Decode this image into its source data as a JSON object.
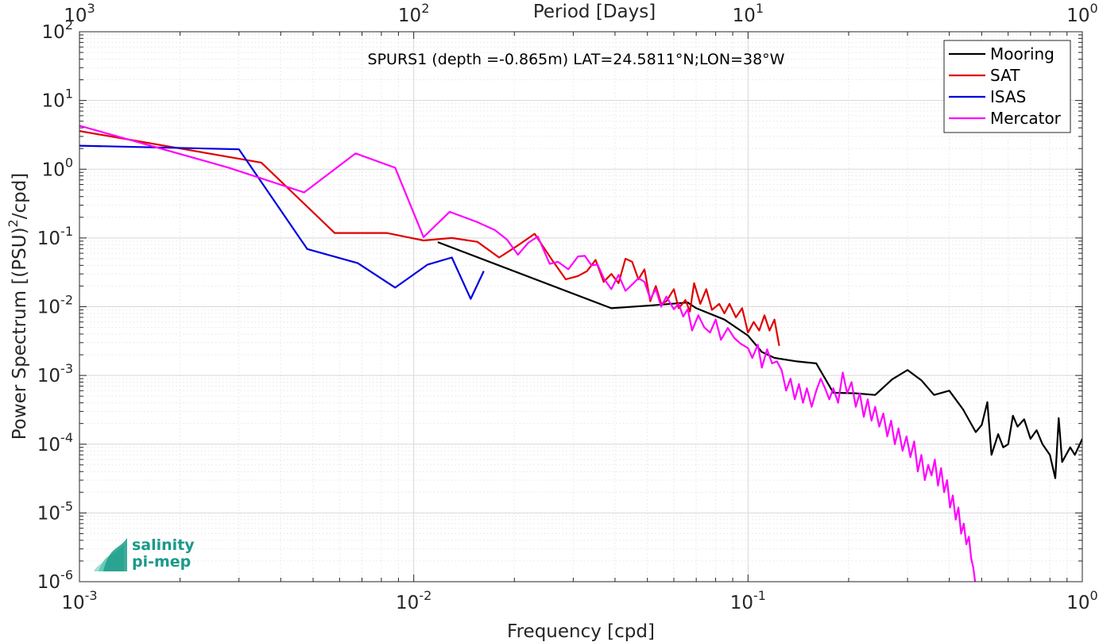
{
  "chart_data": {
    "type": "line",
    "title": "SPURS1 (depth =-0.865m) LAT=24.5811°N;LON=38°W",
    "xlabel": "Frequency [cpd]",
    "ylabel": "Power Spectrum [(PSU)^2/cpd]",
    "ylabel_parts": {
      "before": "Power Spectrum [(PSU)",
      "sup": "2",
      "after": "/cpd]"
    },
    "x2label": "Period [Days]",
    "xscale": "log",
    "yscale": "log",
    "xlim": [
      0.001,
      1
    ],
    "ylim": [
      1e-06,
      100
    ],
    "grid": true,
    "legend_position": "top-right",
    "x_ticks": [
      {
        "value": 0.001,
        "base": "10",
        "exp": "-3"
      },
      {
        "value": 0.01,
        "base": "10",
        "exp": "-2"
      },
      {
        "value": 0.1,
        "base": "10",
        "exp": "-1"
      },
      {
        "value": 1,
        "base": "10",
        "exp": "0"
      }
    ],
    "x2_ticks": [
      {
        "value": 0.001,
        "base": "10",
        "exp": "3"
      },
      {
        "value": 0.01,
        "base": "10",
        "exp": "2"
      },
      {
        "value": 0.1,
        "base": "10",
        "exp": "1"
      },
      {
        "value": 1,
        "base": "10",
        "exp": "0"
      }
    ],
    "y_ticks": [
      {
        "value": 1e-06,
        "base": "10",
        "exp": "-6"
      },
      {
        "value": 1e-05,
        "base": "10",
        "exp": "-5"
      },
      {
        "value": 0.0001,
        "base": "10",
        "exp": "-4"
      },
      {
        "value": 0.001,
        "base": "10",
        "exp": "-3"
      },
      {
        "value": 0.01,
        "base": "10",
        "exp": "-2"
      },
      {
        "value": 0.1,
        "base": "10",
        "exp": "-1"
      },
      {
        "value": 1,
        "base": "10",
        "exp": "0"
      },
      {
        "value": 10,
        "base": "10",
        "exp": "1"
      },
      {
        "value": 100,
        "base": "10",
        "exp": "2"
      }
    ],
    "series": [
      {
        "name": "Mooring",
        "color": "#000000",
        "points": [
          [
            0.0118,
            0.087
          ],
          [
            0.039,
            0.0095
          ],
          [
            0.052,
            0.0105
          ],
          [
            0.066,
            0.0115
          ],
          [
            0.07,
            0.0095
          ],
          [
            0.085,
            0.0065
          ],
          [
            0.1,
            0.0038
          ],
          [
            0.11,
            0.0022
          ],
          [
            0.12,
            0.0018
          ],
          [
            0.14,
            0.0016
          ],
          [
            0.16,
            0.0015
          ],
          [
            0.18,
            0.00056
          ],
          [
            0.21,
            0.00055
          ],
          [
            0.24,
            0.00052
          ],
          [
            0.27,
            0.00088
          ],
          [
            0.3,
            0.0012
          ],
          [
            0.33,
            0.00085
          ],
          [
            0.36,
            0.00052
          ],
          [
            0.4,
            0.0006
          ],
          [
            0.44,
            0.00032
          ],
          [
            0.48,
            0.00015
          ],
          [
            0.5,
            0.00019
          ],
          [
            0.52,
            0.00041
          ],
          [
            0.535,
            7e-05
          ],
          [
            0.56,
            0.00014
          ],
          [
            0.58,
            9e-05
          ],
          [
            0.6,
            0.0001
          ],
          [
            0.62,
            0.00026
          ],
          [
            0.64,
            0.00018
          ],
          [
            0.67,
            0.00023
          ],
          [
            0.7,
            0.00012
          ],
          [
            0.73,
            0.00016
          ],
          [
            0.76,
            0.0001
          ],
          [
            0.8,
            7e-05
          ],
          [
            0.83,
            3.2e-05
          ],
          [
            0.85,
            0.00024
          ],
          [
            0.87,
            5.5e-05
          ],
          [
            0.92,
            9e-05
          ],
          [
            0.95,
            7e-05
          ],
          [
            1.0,
            0.00012
          ]
        ]
      },
      {
        "name": "SAT",
        "color": "#e00000",
        "points": [
          [
            0.001,
            3.6
          ],
          [
            0.0035,
            1.25
          ],
          [
            0.0058,
            0.118
          ],
          [
            0.0083,
            0.118
          ],
          [
            0.0107,
            0.092
          ],
          [
            0.013,
            0.1
          ],
          [
            0.0155,
            0.088
          ],
          [
            0.018,
            0.052
          ],
          [
            0.0205,
            0.078
          ],
          [
            0.023,
            0.115
          ],
          [
            0.026,
            0.047
          ],
          [
            0.0285,
            0.025
          ],
          [
            0.031,
            0.028
          ],
          [
            0.033,
            0.033
          ],
          [
            0.035,
            0.048
          ],
          [
            0.037,
            0.023
          ],
          [
            0.039,
            0.03
          ],
          [
            0.041,
            0.022
          ],
          [
            0.043,
            0.05
          ],
          [
            0.045,
            0.045
          ],
          [
            0.047,
            0.025
          ],
          [
            0.049,
            0.035
          ],
          [
            0.051,
            0.012
          ],
          [
            0.053,
            0.02
          ],
          [
            0.055,
            0.011
          ],
          [
            0.057,
            0.012
          ],
          [
            0.06,
            0.018
          ],
          [
            0.062,
            0.0095
          ],
          [
            0.065,
            0.0125
          ],
          [
            0.067,
            0.0085
          ],
          [
            0.069,
            0.022
          ],
          [
            0.072,
            0.011
          ],
          [
            0.075,
            0.018
          ],
          [
            0.078,
            0.009
          ],
          [
            0.082,
            0.011
          ],
          [
            0.085,
            0.008
          ],
          [
            0.088,
            0.011
          ],
          [
            0.092,
            0.007
          ],
          [
            0.096,
            0.0095
          ],
          [
            0.1,
            0.0042
          ],
          [
            0.104,
            0.006
          ],
          [
            0.108,
            0.0045
          ],
          [
            0.112,
            0.0075
          ],
          [
            0.116,
            0.0045
          ],
          [
            0.12,
            0.0065
          ],
          [
            0.124,
            0.0027
          ]
        ]
      },
      {
        "name": "ISAS",
        "color": "#0000e0",
        "points": [
          [
            0.001,
            2.2
          ],
          [
            0.003,
            1.95
          ],
          [
            0.0048,
            0.069
          ],
          [
            0.0068,
            0.043
          ],
          [
            0.0088,
            0.019
          ],
          [
            0.011,
            0.041
          ],
          [
            0.013,
            0.052
          ],
          [
            0.0148,
            0.013
          ],
          [
            0.0162,
            0.033
          ]
        ]
      },
      {
        "name": "Mercator",
        "color": "#ff00ff",
        "points": [
          [
            0.001,
            4.3
          ],
          [
            0.0028,
            1.05
          ],
          [
            0.0047,
            0.46
          ],
          [
            0.0067,
            1.7
          ],
          [
            0.0088,
            1.05
          ],
          [
            0.0107,
            0.103
          ],
          [
            0.0128,
            0.24
          ],
          [
            0.0155,
            0.17
          ],
          [
            0.0175,
            0.13
          ],
          [
            0.019,
            0.095
          ],
          [
            0.0205,
            0.057
          ],
          [
            0.022,
            0.085
          ],
          [
            0.0235,
            0.105
          ],
          [
            0.0255,
            0.042
          ],
          [
            0.027,
            0.045
          ],
          [
            0.029,
            0.035
          ],
          [
            0.031,
            0.054
          ],
          [
            0.0325,
            0.055
          ],
          [
            0.034,
            0.04
          ],
          [
            0.0355,
            0.041
          ],
          [
            0.037,
            0.026
          ],
          [
            0.039,
            0.018
          ],
          [
            0.041,
            0.029
          ],
          [
            0.043,
            0.017
          ],
          [
            0.045,
            0.021
          ],
          [
            0.047,
            0.026
          ],
          [
            0.049,
            0.023
          ],
          [
            0.051,
            0.013
          ],
          [
            0.053,
            0.018
          ],
          [
            0.055,
            0.01
          ],
          [
            0.057,
            0.014
          ],
          [
            0.06,
            0.0092
          ],
          [
            0.062,
            0.011
          ],
          [
            0.064,
            0.0072
          ],
          [
            0.066,
            0.0092
          ],
          [
            0.068,
            0.0045
          ],
          [
            0.071,
            0.0075
          ],
          [
            0.074,
            0.005
          ],
          [
            0.077,
            0.0042
          ],
          [
            0.08,
            0.0065
          ],
          [
            0.083,
            0.0033
          ],
          [
            0.087,
            0.0049
          ],
          [
            0.091,
            0.0035
          ],
          [
            0.095,
            0.0029
          ],
          [
            0.1,
            0.0025
          ],
          [
            0.103,
            0.0018
          ],
          [
            0.107,
            0.0028
          ],
          [
            0.11,
            0.0013
          ],
          [
            0.114,
            0.0024
          ],
          [
            0.118,
            0.0015
          ],
          [
            0.122,
            0.0016
          ],
          [
            0.126,
            0.0012
          ],
          [
            0.13,
            0.0006
          ],
          [
            0.134,
            0.0009
          ],
          [
            0.138,
            0.00045
          ],
          [
            0.142,
            0.00075
          ],
          [
            0.146,
            0.0004
          ],
          [
            0.15,
            0.00065
          ],
          [
            0.155,
            0.00035
          ],
          [
            0.16,
            0.0006
          ],
          [
            0.165,
            0.0009
          ],
          [
            0.17,
            0.00065
          ],
          [
            0.175,
            0.00045
          ],
          [
            0.18,
            0.00065
          ],
          [
            0.186,
            0.0004
          ],
          [
            0.192,
            0.0011
          ],
          [
            0.198,
            0.00055
          ],
          [
            0.204,
            0.0008
          ],
          [
            0.21,
            0.00035
          ],
          [
            0.216,
            0.00055
          ],
          [
            0.222,
            0.00025
          ],
          [
            0.228,
            0.00045
          ],
          [
            0.234,
            0.00022
          ],
          [
            0.24,
            0.00035
          ],
          [
            0.247,
            0.00018
          ],
          [
            0.254,
            0.00028
          ],
          [
            0.261,
            0.00013
          ],
          [
            0.268,
            0.00022
          ],
          [
            0.275,
            0.0001
          ],
          [
            0.282,
            0.00017
          ],
          [
            0.29,
            8e-05
          ],
          [
            0.298,
            0.00013
          ],
          [
            0.306,
            6.5e-05
          ],
          [
            0.314,
            0.00011
          ],
          [
            0.322,
            4e-05
          ],
          [
            0.33,
            7e-05
          ],
          [
            0.338,
            3e-05
          ],
          [
            0.346,
            5e-05
          ],
          [
            0.354,
            3.5e-05
          ],
          [
            0.362,
            6e-05
          ],
          [
            0.37,
            2.5e-05
          ],
          [
            0.378,
            4.5e-05
          ],
          [
            0.386,
            2e-05
          ],
          [
            0.394,
            3e-05
          ],
          [
            0.402,
            1.2e-05
          ],
          [
            0.41,
            1.8e-05
          ],
          [
            0.418,
            8e-06
          ],
          [
            0.426,
            1.2e-05
          ],
          [
            0.434,
            5e-06
          ],
          [
            0.442,
            7e-06
          ],
          [
            0.45,
            3.5e-06
          ],
          [
            0.458,
            4.5e-06
          ],
          [
            0.465,
            2.2e-06
          ],
          [
            0.472,
            1.6e-06
          ],
          [
            0.478,
            1e-06
          ]
        ]
      }
    ]
  },
  "logo": {
    "line1": "salinity",
    "line2": "pi-mep",
    "color": "#1a9a8a"
  }
}
